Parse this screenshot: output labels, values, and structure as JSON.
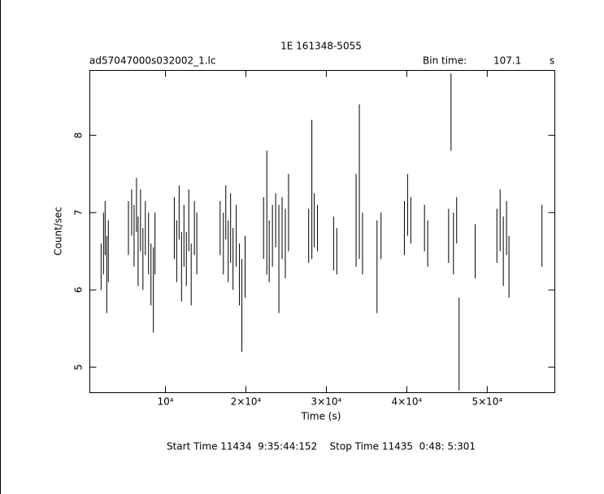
{
  "chart_data": {
    "type": "errorbar",
    "title": "1E 161348-5055",
    "file_label": "ad57047000s032002_1.lc",
    "bin_time_label": "Bin time:",
    "bin_time": 107.1,
    "bin_time_unit": "s",
    "xlabel": "Time (s)",
    "ylabel": "Count/sec",
    "footer": "Start Time 11434  9:35:44:152    Stop Time 11435  0:48: 5:301",
    "color": "#000000",
    "xlim": [
      600,
      58400
    ],
    "ylim": [
      4.67,
      8.84
    ],
    "xticks": [
      {
        "value": 10000,
        "label": "10⁴"
      },
      {
        "value": 20000,
        "label": "2×10⁴"
      },
      {
        "value": 30000,
        "label": "3×10⁴"
      },
      {
        "value": 40000,
        "label": "4×10⁴"
      },
      {
        "value": 50000,
        "label": "5×10⁴"
      }
    ],
    "yticks": [
      5,
      6,
      7,
      8
    ],
    "x": [
      2000,
      2300,
      2500,
      2700,
      2900,
      5400,
      5800,
      6100,
      6400,
      6600,
      6900,
      7200,
      7500,
      7900,
      8200,
      8500,
      8700,
      11100,
      11400,
      11700,
      12000,
      12300,
      12600,
      12900,
      13200,
      13600,
      13900,
      16800,
      17200,
      17500,
      17800,
      18100,
      18400,
      18800,
      19200,
      19500,
      19900,
      22200,
      22600,
      22900,
      23300,
      23700,
      24100,
      24500,
      24900,
      25300,
      27800,
      28200,
      28500,
      28900,
      30900,
      31300,
      33700,
      34100,
      34500,
      36300,
      36800,
      39700,
      40100,
      40500,
      42200,
      42600,
      45200,
      45500,
      45800,
      46200,
      46500,
      48500,
      51200,
      51600,
      52000,
      52400,
      52700,
      56800
    ],
    "y": [
      6.3,
      6.6,
      6.8,
      6.2,
      6.5,
      6.8,
      7.0,
      6.7,
      7.1,
      6.5,
      6.9,
      6.4,
      6.8,
      6.6,
      6.2,
      6.0,
      6.6,
      6.8,
      6.5,
      7.0,
      6.3,
      6.7,
      6.4,
      6.9,
      6.2,
      6.8,
      6.6,
      6.8,
      6.6,
      7.0,
      6.5,
      6.8,
      6.4,
      6.7,
      6.2,
      5.8,
      6.3,
      6.8,
      7.0,
      6.5,
      6.7,
      6.9,
      6.4,
      6.8,
      6.6,
      7.0,
      6.7,
      7.3,
      6.9,
      6.8,
      6.6,
      6.5,
      6.9,
      7.4,
      6.6,
      6.3,
      6.7,
      6.8,
      7.1,
      6.9,
      6.8,
      6.6,
      6.7,
      8.3,
      6.6,
      6.9,
      5.3,
      6.5,
      6.7,
      6.9,
      6.5,
      6.8,
      6.3,
      6.7
    ],
    "err": [
      0.3,
      0.4,
      0.35,
      0.5,
      0.4,
      0.35,
      0.3,
      0.4,
      0.35,
      0.45,
      0.4,
      0.4,
      0.35,
      0.4,
      0.4,
      0.55,
      0.4,
      0.4,
      0.4,
      0.35,
      0.45,
      0.4,
      0.35,
      0.4,
      0.4,
      0.35,
      0.4,
      0.35,
      0.4,
      0.35,
      0.4,
      0.45,
      0.4,
      0.4,
      0.4,
      0.6,
      0.4,
      0.4,
      0.8,
      0.4,
      0.4,
      0.35,
      0.7,
      0.4,
      0.45,
      0.5,
      0.35,
      0.9,
      0.35,
      0.3,
      0.35,
      0.3,
      0.6,
      1.0,
      0.4,
      0.6,
      0.3,
      0.35,
      0.4,
      0.3,
      0.3,
      0.3,
      0.35,
      0.5,
      0.4,
      0.3,
      0.6,
      0.35,
      0.35,
      0.4,
      0.45,
      0.35,
      0.4,
      0.4
    ]
  }
}
